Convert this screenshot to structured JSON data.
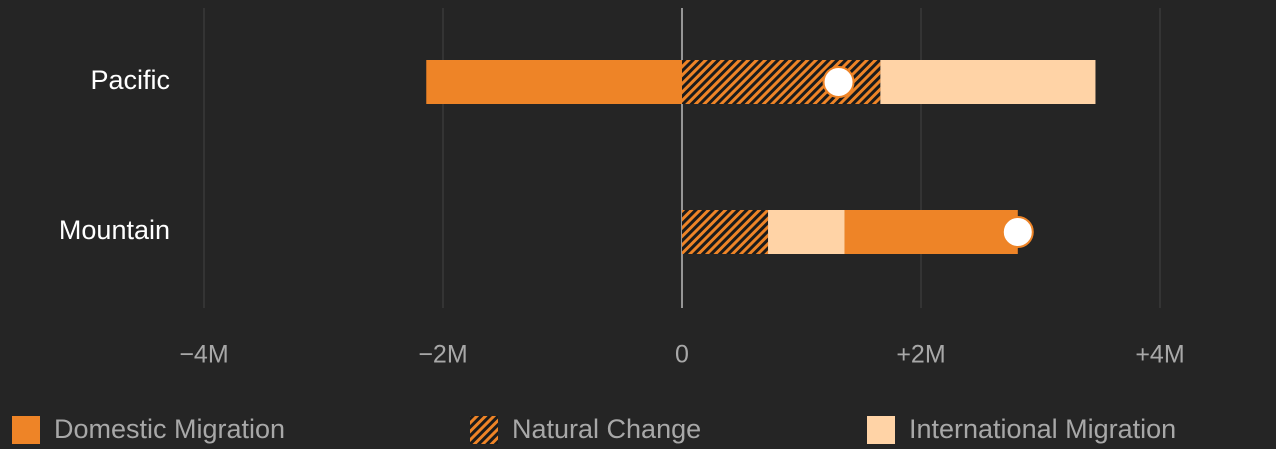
{
  "chart_data": {
    "type": "bar",
    "orientation": "horizontal",
    "stacked": true,
    "categories": [
      "Pacific",
      "Mountain"
    ],
    "series": [
      {
        "name": "Domestic Migration",
        "color": "#ee8427",
        "values": [
          -2140000,
          1450000
        ]
      },
      {
        "name": "Natural Change",
        "color": "#ee8427",
        "pattern": "hatch",
        "values": [
          1660000,
          720000
        ]
      },
      {
        "name": "International Migration",
        "color": "#ffd3a6",
        "values": [
          1800000,
          640000
        ]
      }
    ],
    "totals": [
      1310000,
      2810000
    ],
    "xlim": [
      -4000000,
      4000000
    ],
    "xticks": [
      {
        "value": -4000000,
        "label": "−4M"
      },
      {
        "value": -2000000,
        "label": "−2M"
      },
      0,
      {
        "value": 2000000,
        "label": "+2M"
      },
      {
        "value": 4000000,
        "label": "+4M"
      }
    ],
    "grid": true,
    "legend": "bottom"
  }
}
